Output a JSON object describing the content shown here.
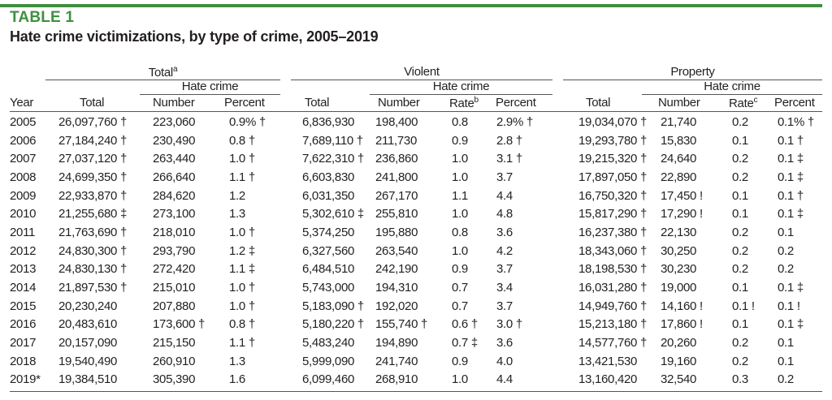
{
  "label": "TABLE 1",
  "title": "Hate crime victimizations, by type of crime, 2005–2019",
  "groups": {
    "total": "Total",
    "total_sup": "a",
    "violent": "Violent",
    "property": "Property",
    "hate_crime": "Hate crime"
  },
  "columns": {
    "year": "Year",
    "total": "Total",
    "number": "Number",
    "percent": "Percent",
    "rate": "Rate",
    "rate_violent_sup": "b",
    "rate_property_sup": "c"
  },
  "rows": [
    [
      "2005",
      "26,097,760 †",
      "223,060",
      "0.9% †",
      "6,836,930",
      "198,400",
      "0.8",
      "2.9% †",
      "19,034,070 †",
      "21,740",
      "0.2",
      "0.1% †"
    ],
    [
      "2006",
      "27,184,240 †",
      "230,490",
      "0.8 †",
      "7,689,110 †",
      "211,730",
      "0.9",
      "2.8 †",
      "19,293,780 †",
      "15,830",
      "0.1",
      "0.1 †"
    ],
    [
      "2007",
      "27,037,120 †",
      "263,440",
      "1.0 †",
      "7,622,310 †",
      "236,860",
      "1.0",
      "3.1 †",
      "19,215,320 †",
      "24,640",
      "0.2",
      "0.1 ‡"
    ],
    [
      "2008",
      "24,699,350 †",
      "266,640",
      "1.1 †",
      "6,603,830",
      "241,800",
      "1.0",
      "3.7",
      "17,897,050 †",
      "22,890",
      "0.2",
      "0.1 ‡"
    ],
    [
      "2009",
      "22,933,870 †",
      "284,620",
      "1.2",
      "6,031,350",
      "267,170",
      "1.1",
      "4.4",
      "16,750,320 †",
      "17,450 !",
      "0.1",
      "0.1 †"
    ],
    [
      "2010",
      "21,255,680 ‡",
      "273,100",
      "1.3",
      "5,302,610 ‡",
      "255,810",
      "1.0",
      "4.8",
      "15,817,290 †",
      "17,290 !",
      "0.1",
      "0.1 ‡"
    ],
    [
      "2011",
      "21,763,690 †",
      "218,010",
      "1.0 †",
      "5,374,250",
      "195,880",
      "0.8",
      "3.6",
      "16,237,380 †",
      "22,130",
      "0.2",
      "0.1"
    ],
    [
      "2012",
      "24,830,300 †",
      "293,790",
      "1.2 ‡",
      "6,327,560",
      "263,540",
      "1.0",
      "4.2",
      "18,343,060 †",
      "30,250",
      "0.2",
      "0.2"
    ],
    [
      "2013",
      "24,830,130 †",
      "272,420",
      "1.1 ‡",
      "6,484,510",
      "242,190",
      "0.9",
      "3.7",
      "18,198,530 †",
      "30,230",
      "0.2",
      "0.2"
    ],
    [
      "2014",
      "21,897,530 †",
      "215,010",
      "1.0 †",
      "5,743,000",
      "194,310",
      "0.7",
      "3.4",
      "16,031,280 †",
      "19,000",
      "0.1",
      "0.1 ‡"
    ],
    [
      "2015",
      "20,230,240",
      "207,880",
      "1.0 †",
      "5,183,090 †",
      "192,020",
      "0.7",
      "3.7",
      "14,949,760 †",
      "14,160 !",
      "0.1 !",
      "0.1 !"
    ],
    [
      "2016",
      "20,483,610",
      "173,600 †",
      "0.8 †",
      "5,180,220 †",
      "155,740 †",
      "0.6 †",
      "3.0 †",
      "15,213,180 †",
      "17,860 !",
      "0.1",
      "0.1 ‡"
    ],
    [
      "2017",
      "20,157,090",
      "215,150",
      "1.1 †",
      "5,483,240",
      "194,890",
      "0.7 ‡",
      "3.6",
      "14,577,760 †",
      "20,260",
      "0.2",
      "0.1"
    ],
    [
      "2018",
      "19,540,490",
      "260,910",
      "1.3",
      "5,999,090",
      "241,740",
      "0.9",
      "4.0",
      "13,421,530",
      "19,160",
      "0.2",
      "0.1"
    ],
    [
      "2019*",
      "19,384,510",
      "305,390",
      "1.6",
      "6,099,460",
      "268,910",
      "1.0",
      "4.4",
      "13,160,420",
      "32,540",
      "0.3",
      "0.2"
    ]
  ]
}
